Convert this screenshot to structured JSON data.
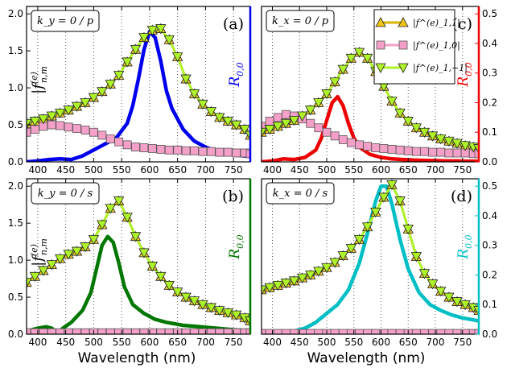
{
  "figure": {
    "xlabel": "Wavelength (nm)"
  },
  "legend": {
    "entries": [
      {
        "label": "|f^(e)_1,1|",
        "marker": "triangle-up",
        "color": "#f0c419"
      },
      {
        "label": "|f^(e)_1,0|",
        "marker": "square",
        "color": "#f5a0c8"
      },
      {
        "label": "|f^(e)_1,−1|",
        "marker": "triangle-down",
        "color": "#aef22a"
      }
    ]
  },
  "chart_data": [
    {
      "type": "line",
      "panel": "(a)",
      "condition": "k_y = 0 / p",
      "ylabel_left": "|f^(e)_n,m|",
      "ylabel_right": "R_0,0",
      "right_color": "#0000ee",
      "xlim": [
        380,
        780
      ],
      "ylim_left": [
        0,
        2.1
      ],
      "ylim_right": [
        0,
        0.525
      ],
      "xticks": [
        400,
        450,
        500,
        550,
        600,
        650,
        700,
        750
      ],
      "yticks_left": [
        "0.0",
        "0.5",
        "1.0",
        "1.5",
        "2.0"
      ],
      "yticks_right": [],
      "x": [
        380,
        395,
        410,
        425,
        440,
        455,
        470,
        485,
        500,
        515,
        530,
        545,
        560,
        575,
        590,
        605,
        620,
        635,
        650,
        665,
        680,
        695,
        710,
        725,
        740,
        755,
        770,
        780
      ],
      "series": [
        {
          "name": "|f^(e)_1,1|",
          "values": [
            0.52,
            0.55,
            0.58,
            0.62,
            0.66,
            0.7,
            0.75,
            0.8,
            0.87,
            0.95,
            1.05,
            1.17,
            1.35,
            1.52,
            1.68,
            1.78,
            1.8,
            1.65,
            1.42,
            1.12,
            0.92,
            0.78,
            0.68,
            0.6,
            0.55,
            0.5,
            0.44,
            0.36
          ]
        },
        {
          "name": "|f^(e)_1,0|",
          "values": [
            0.4,
            0.44,
            0.48,
            0.5,
            0.49,
            0.47,
            0.45,
            0.43,
            0.4,
            0.36,
            0.31,
            0.27,
            0.23,
            0.2,
            0.19,
            0.18,
            0.17,
            0.16,
            0.16,
            0.15,
            0.15,
            0.14,
            0.14,
            0.13,
            0.13,
            0.12,
            0.12,
            0.11
          ]
        },
        {
          "name": "|f^(e)_1,−1|",
          "values": [
            0.52,
            0.55,
            0.58,
            0.62,
            0.66,
            0.7,
            0.75,
            0.8,
            0.87,
            0.95,
            1.05,
            1.17,
            1.35,
            1.52,
            1.68,
            1.78,
            1.8,
            1.65,
            1.42,
            1.12,
            0.92,
            0.78,
            0.68,
            0.6,
            0.55,
            0.5,
            0.44,
            0.36
          ]
        },
        {
          "name": "R_0,0",
          "axis": "right",
          "x": [
            380,
            400,
            420,
            440,
            460,
            480,
            500,
            520,
            540,
            560,
            570,
            580,
            590,
            600,
            610,
            620,
            630,
            640,
            660,
            680,
            700,
            720,
            740,
            760,
            780
          ],
          "values": [
            0.0,
            0.003,
            0.008,
            0.01,
            0.008,
            0.02,
            0.04,
            0.06,
            0.08,
            0.13,
            0.19,
            0.28,
            0.38,
            0.44,
            0.42,
            0.34,
            0.24,
            0.18,
            0.11,
            0.07,
            0.05,
            0.035,
            0.028,
            0.022,
            0.018
          ]
        }
      ]
    },
    {
      "type": "line",
      "panel": "(c)",
      "condition": "k_x = 0 / p",
      "ylabel_left": "",
      "ylabel_right": "R_0,0",
      "right_color": "#ee0000",
      "xlim": [
        380,
        780
      ],
      "ylim_left": [
        0,
        2.1
      ],
      "ylim_right": [
        0,
        0.525
      ],
      "xticks": [
        400,
        450,
        500,
        550,
        600,
        650,
        700,
        750
      ],
      "yticks_left": [],
      "yticks_right": [
        "0.0",
        "0.1",
        "0.2",
        "0.3",
        "0.4",
        "0.5"
      ],
      "x": [
        380,
        395,
        410,
        425,
        440,
        455,
        470,
        485,
        500,
        515,
        530,
        545,
        560,
        575,
        590,
        605,
        620,
        635,
        650,
        665,
        680,
        695,
        710,
        725,
        740,
        755,
        770,
        780
      ],
      "series": [
        {
          "name": "|f^(e)_1,1|",
          "values": [
            0.4,
            0.44,
            0.48,
            0.52,
            0.56,
            0.62,
            0.7,
            0.8,
            0.92,
            1.08,
            1.25,
            1.4,
            1.48,
            1.4,
            1.22,
            1.02,
            0.82,
            0.66,
            0.55,
            0.46,
            0.4,
            0.35,
            0.31,
            0.28,
            0.25,
            0.22,
            0.2,
            0.18
          ]
        },
        {
          "name": "|f^(e)_1,0|",
          "values": [
            0.48,
            0.55,
            0.6,
            0.64,
            0.62,
            0.58,
            0.52,
            0.46,
            0.4,
            0.35,
            0.3,
            0.26,
            0.23,
            0.21,
            0.19,
            0.18,
            0.17,
            0.16,
            0.15,
            0.14,
            0.14,
            0.13,
            0.13,
            0.12,
            0.12,
            0.12,
            0.11,
            0.11
          ]
        },
        {
          "name": "|f^(e)_1,−1|",
          "values": [
            0.4,
            0.44,
            0.48,
            0.52,
            0.56,
            0.62,
            0.7,
            0.8,
            0.92,
            1.08,
            1.25,
            1.4,
            1.48,
            1.4,
            1.22,
            1.02,
            0.82,
            0.66,
            0.55,
            0.46,
            0.4,
            0.35,
            0.31,
            0.28,
            0.25,
            0.22,
            0.2,
            0.18
          ]
        },
        {
          "name": "R_0,0",
          "axis": "right",
          "x": [
            380,
            400,
            420,
            440,
            460,
            480,
            490,
            500,
            510,
            520,
            530,
            540,
            550,
            560,
            580,
            600,
            620,
            640,
            660,
            680,
            700,
            720,
            740,
            760,
            780
          ],
          "values": [
            0.0,
            0.003,
            0.01,
            0.008,
            0.015,
            0.04,
            0.08,
            0.14,
            0.2,
            0.22,
            0.19,
            0.13,
            0.08,
            0.05,
            0.025,
            0.015,
            0.01,
            0.008,
            0.006,
            0.005,
            0.004,
            0.003,
            0.003,
            0.002,
            0.002
          ]
        }
      ]
    },
    {
      "type": "line",
      "panel": "(b)",
      "condition": "k_y = 0 / s",
      "ylabel_left": "|f^(e)_n,m|",
      "ylabel_right": "R_0,0",
      "right_color": "#007700",
      "xlim": [
        380,
        780
      ],
      "ylim_left": [
        0,
        2.1
      ],
      "ylim_right": [
        0,
        0.525
      ],
      "xticks": [
        400,
        450,
        500,
        550,
        600,
        650,
        700,
        750
      ],
      "yticks_left": [
        "0.0",
        "0.5",
        "1.0",
        "1.5",
        "2.0"
      ],
      "yticks_right": [],
      "x": [
        380,
        395,
        410,
        425,
        440,
        455,
        470,
        485,
        500,
        515,
        530,
        545,
        560,
        575,
        590,
        605,
        620,
        635,
        650,
        665,
        680,
        695,
        710,
        725,
        740,
        755,
        770,
        780
      ],
      "series": [
        {
          "name": "|f^(e)_1,1|",
          "values": [
            0.7,
            0.78,
            0.86,
            0.94,
            1.02,
            1.08,
            1.12,
            1.18,
            1.28,
            1.48,
            1.7,
            1.8,
            1.58,
            1.32,
            1.1,
            0.92,
            0.78,
            0.66,
            0.57,
            0.5,
            0.45,
            0.4,
            0.36,
            0.32,
            0.29,
            0.26,
            0.22,
            0.18
          ]
        },
        {
          "name": "|f^(e)_1,0|",
          "values": [
            0.02,
            0.02,
            0.02,
            0.02,
            0.02,
            0.02,
            0.02,
            0.02,
            0.02,
            0.02,
            0.02,
            0.02,
            0.02,
            0.02,
            0.02,
            0.02,
            0.02,
            0.02,
            0.02,
            0.02,
            0.02,
            0.02,
            0.02,
            0.02,
            0.02,
            0.02,
            0.02,
            0.02
          ]
        },
        {
          "name": "|f^(e)_1,−1|",
          "values": [
            0.7,
            0.78,
            0.86,
            0.94,
            1.02,
            1.08,
            1.12,
            1.18,
            1.28,
            1.48,
            1.7,
            1.8,
            1.58,
            1.32,
            1.1,
            0.92,
            0.78,
            0.66,
            0.57,
            0.5,
            0.45,
            0.4,
            0.36,
            0.32,
            0.29,
            0.26,
            0.22,
            0.18
          ]
        },
        {
          "name": "R_0,0",
          "axis": "right",
          "x": [
            380,
            400,
            415,
            425,
            435,
            445,
            460,
            480,
            495,
            505,
            515,
            525,
            535,
            545,
            555,
            570,
            590,
            610,
            630,
            660,
            690,
            720,
            750,
            780
          ],
          "values": [
            0.01,
            0.02,
            0.025,
            0.02,
            0.005,
            0.02,
            0.04,
            0.08,
            0.14,
            0.22,
            0.3,
            0.33,
            0.31,
            0.24,
            0.16,
            0.1,
            0.07,
            0.05,
            0.04,
            0.03,
            0.025,
            0.02,
            0.015,
            0.012
          ]
        }
      ]
    },
    {
      "type": "line",
      "panel": "(d)",
      "condition": "k_x = 0 / s",
      "ylabel_left": "",
      "ylabel_right": "R_0,0",
      "right_color": "#00bfc4",
      "xlim": [
        380,
        780
      ],
      "ylim_left": [
        0,
        2.1
      ],
      "ylim_right": [
        0,
        0.525
      ],
      "xticks": [
        400,
        450,
        500,
        550,
        600,
        650,
        700,
        750
      ],
      "yticks_left": [],
      "yticks_right": [
        "0.0",
        "0.1",
        "0.2",
        "0.3",
        "0.4",
        "0.5"
      ],
      "x": [
        380,
        395,
        410,
        425,
        440,
        455,
        470,
        485,
        500,
        515,
        530,
        545,
        560,
        575,
        590,
        605,
        620,
        635,
        650,
        665,
        680,
        695,
        710,
        725,
        740,
        755,
        770,
        780
      ],
      "series": [
        {
          "name": "|f^(e)_1,1|",
          "values": [
            0.6,
            0.63,
            0.66,
            0.69,
            0.72,
            0.76,
            0.8,
            0.85,
            0.9,
            0.97,
            1.06,
            1.16,
            1.28,
            1.45,
            1.65,
            1.85,
            2.02,
            1.8,
            1.42,
            1.05,
            0.82,
            0.68,
            0.58,
            0.5,
            0.44,
            0.4,
            0.36,
            0.32
          ]
        },
        {
          "name": "|f^(e)_1,0|",
          "values": [
            0.01,
            0.01,
            0.01,
            0.01,
            0.01,
            0.01,
            0.01,
            0.01,
            0.01,
            0.01,
            0.01,
            0.01,
            0.01,
            0.01,
            0.01,
            0.01,
            0.01,
            0.01,
            0.01,
            0.01,
            0.01,
            0.01,
            0.01,
            0.01,
            0.01,
            0.01,
            0.01,
            0.01
          ]
        },
        {
          "name": "|f^(e)_1,−1|",
          "values": [
            0.6,
            0.63,
            0.66,
            0.69,
            0.72,
            0.76,
            0.8,
            0.85,
            0.9,
            0.97,
            1.06,
            1.16,
            1.28,
            1.45,
            1.65,
            1.85,
            2.02,
            1.8,
            1.42,
            1.05,
            0.82,
            0.68,
            0.58,
            0.5,
            0.44,
            0.4,
            0.36,
            0.32
          ]
        },
        {
          "name": "R_0,0",
          "axis": "right",
          "x": [
            380,
            400,
            420,
            430,
            440,
            460,
            480,
            500,
            520,
            540,
            560,
            575,
            590,
            600,
            610,
            620,
            635,
            650,
            670,
            690,
            710,
            730,
            750,
            780
          ],
          "values": [
            0.0,
            0.005,
            0.01,
            0.002,
            0.01,
            0.02,
            0.04,
            0.07,
            0.1,
            0.15,
            0.24,
            0.34,
            0.45,
            0.5,
            0.5,
            0.44,
            0.32,
            0.22,
            0.14,
            0.1,
            0.08,
            0.065,
            0.055,
            0.045
          ]
        }
      ]
    }
  ]
}
